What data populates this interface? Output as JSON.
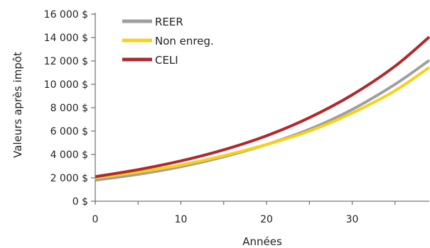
{
  "chart_data": {
    "type": "line",
    "title": "",
    "xlabel": "Années",
    "ylabel": "Valeurs après impôt",
    "xlim": [
      0,
      39
    ],
    "ylim": [
      0,
      16000
    ],
    "x_ticks": [
      0,
      10,
      20,
      30
    ],
    "x_tick_labels": [
      "0",
      "10",
      "20",
      "30"
    ],
    "y_ticks": [
      0,
      2000,
      4000,
      6000,
      8000,
      10000,
      12000,
      14000,
      16000
    ],
    "y_tick_labels": [
      "0 $",
      "2 000 $",
      "4 000 $",
      "6 000 $",
      "8 000 $",
      "10 000 $",
      "12 000 $",
      "14 000 $",
      "16 000 $"
    ],
    "grid": false,
    "legend_position": "top-left",
    "series": [
      {
        "name": "REER",
        "color": "#a09e9f",
        "x": [
          0,
          5,
          10,
          15,
          20,
          25,
          30,
          35,
          39
        ],
        "y": [
          1800,
          2300,
          2950,
          3800,
          4850,
          6150,
          7850,
          10000,
          12050
        ]
      },
      {
        "name": "Non enreg.",
        "color": "#f7d117",
        "x": [
          0,
          5,
          10,
          15,
          20,
          25,
          30,
          35,
          39
        ],
        "y": [
          2000,
          2500,
          3100,
          3900,
          4850,
          6000,
          7550,
          9450,
          11450
        ]
      },
      {
        "name": "CELI",
        "color": "#b0282c",
        "x": [
          0,
          5,
          10,
          15,
          20,
          25,
          30,
          35,
          39
        ],
        "y": [
          2100,
          2700,
          3450,
          4400,
          5600,
          7150,
          9100,
          11550,
          14050
        ]
      }
    ]
  }
}
